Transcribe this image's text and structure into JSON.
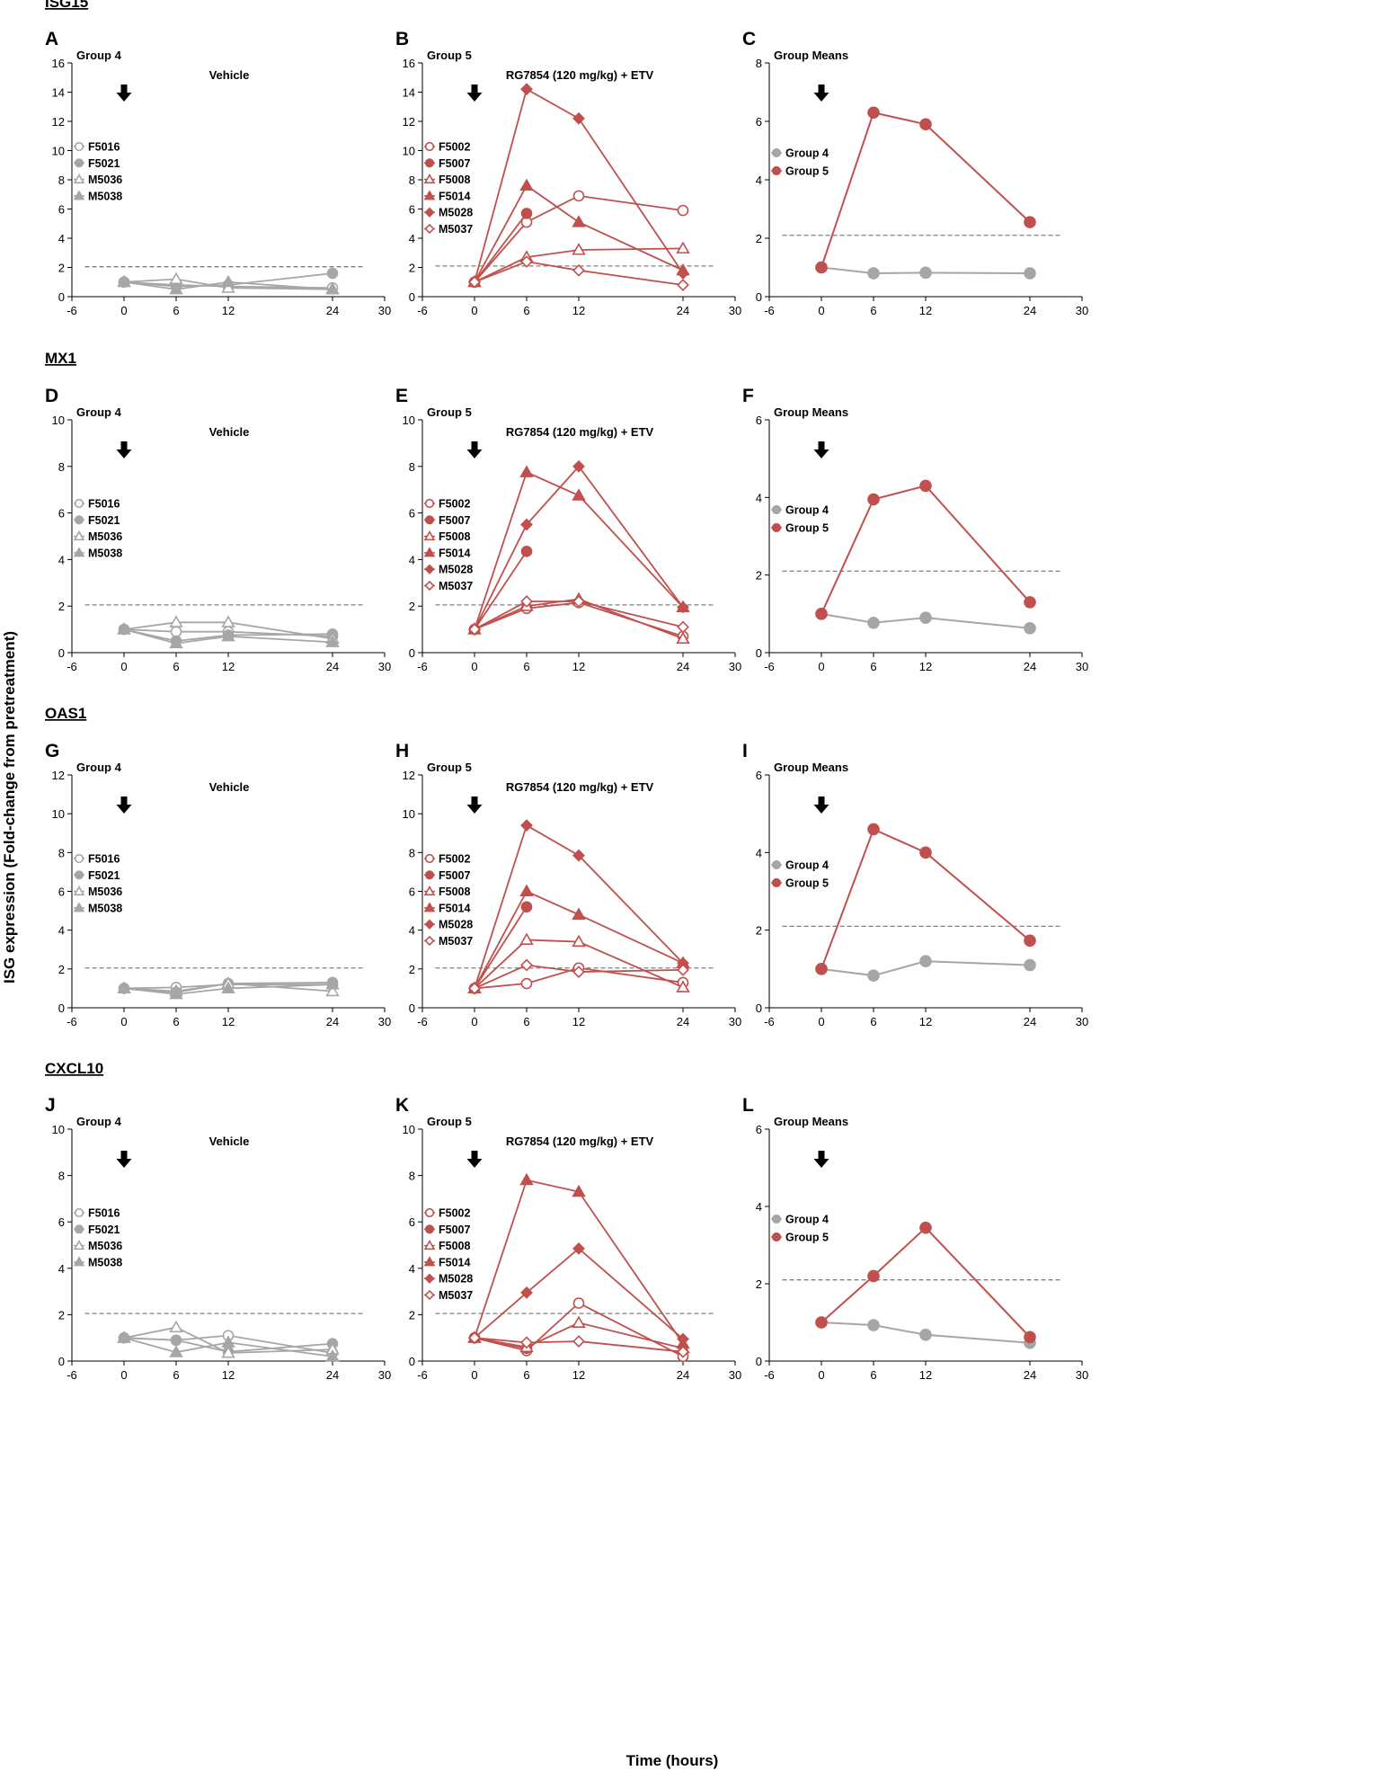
{
  "figure": {
    "ylabel": "ISG expression (Fold-change from pretreatment)",
    "xlabel": "Time (hours)"
  },
  "colors": {
    "group4": "#a6a6a6",
    "group5": "#c0504d",
    "threshold": "#808080"
  },
  "rows": [
    {
      "gene": "ISG15"
    },
    {
      "gene": "MX1"
    },
    {
      "gene": "OAS1"
    },
    {
      "gene": "CXCL10"
    }
  ],
  "chart_data": [
    {
      "panel": "A",
      "type": "line",
      "title": "Group 4",
      "subtitle": "Vehicle",
      "color": "group4",
      "ylim": [
        0,
        16
      ],
      "yticks": [
        0,
        2,
        4,
        6,
        8,
        10,
        12,
        14,
        16
      ],
      "xlim": [
        -6,
        30
      ],
      "xticks": [
        -6,
        0,
        6,
        12,
        24,
        30
      ],
      "threshold": 2.05,
      "series": [
        {
          "name": "F5016",
          "marker": "circle-open",
          "x": [
            0,
            6,
            12,
            24
          ],
          "y": [
            1.0,
            0.8,
            0.7,
            0.6
          ]
        },
        {
          "name": "F5021",
          "marker": "circle",
          "x": [
            0,
            6,
            12,
            24
          ],
          "y": [
            1.0,
            0.7,
            0.8,
            1.6
          ]
        },
        {
          "name": "M5036",
          "marker": "triangle-open",
          "x": [
            0,
            6,
            12,
            24
          ],
          "y": [
            1.0,
            1.2,
            0.6,
            0.5
          ]
        },
        {
          "name": "M5038",
          "marker": "triangle",
          "x": [
            0,
            6,
            12,
            24
          ],
          "y": [
            1.0,
            0.5,
            1.0,
            0.5
          ]
        }
      ]
    },
    {
      "panel": "B",
      "type": "line",
      "title": "Group 5",
      "subtitle": "RG7854 (120 mg/kg) + ETV",
      "color": "group5",
      "ylim": [
        0,
        16
      ],
      "yticks": [
        0,
        2,
        4,
        6,
        8,
        10,
        12,
        14,
        16
      ],
      "xlim": [
        -6,
        30
      ],
      "xticks": [
        -6,
        0,
        6,
        12,
        24,
        30
      ],
      "threshold": 2.1,
      "series": [
        {
          "name": "F5002",
          "marker": "circle-open",
          "x": [
            0,
            6,
            12,
            24
          ],
          "y": [
            1.0,
            5.1,
            6.9,
            5.9
          ]
        },
        {
          "name": "F5007",
          "marker": "circle",
          "x": [
            0,
            6
          ],
          "y": [
            1.0,
            5.7
          ]
        },
        {
          "name": "F5008",
          "marker": "triangle-open",
          "x": [
            0,
            6,
            12,
            24
          ],
          "y": [
            1.0,
            2.7,
            3.2,
            3.3
          ]
        },
        {
          "name": "F5014",
          "marker": "triangle",
          "x": [
            0,
            6,
            12,
            24
          ],
          "y": [
            1.0,
            7.6,
            5.1,
            1.8
          ]
        },
        {
          "name": "M5028",
          "marker": "diamond",
          "x": [
            0,
            6,
            12,
            24
          ],
          "y": [
            1.0,
            14.2,
            12.2,
            1.6
          ]
        },
        {
          "name": "M5037",
          "marker": "diamond-open",
          "x": [
            0,
            6,
            12,
            24
          ],
          "y": [
            1.0,
            2.4,
            1.8,
            0.8
          ]
        }
      ]
    },
    {
      "panel": "C",
      "type": "line",
      "title": "Group Means",
      "subtitle": "",
      "color": "",
      "ylim": [
        0,
        8
      ],
      "yticks": [
        0,
        2,
        4,
        6,
        8
      ],
      "xlim": [
        -6,
        30
      ],
      "xticks": [
        -6,
        0,
        6,
        12,
        24,
        30
      ],
      "threshold": 2.1,
      "series": [
        {
          "name": "Group 4",
          "marker": "circle",
          "color": "group4",
          "x": [
            0,
            6,
            12,
            24
          ],
          "y": [
            1.0,
            0.8,
            0.82,
            0.8
          ]
        },
        {
          "name": "Group 5",
          "marker": "circle",
          "color": "group5",
          "x": [
            0,
            6,
            12,
            24
          ],
          "y": [
            1.0,
            6.3,
            5.9,
            2.55
          ]
        }
      ]
    },
    {
      "panel": "D",
      "type": "line",
      "title": "Group 4",
      "subtitle": "Vehicle",
      "color": "group4",
      "ylim": [
        0,
        10
      ],
      "yticks": [
        0,
        2,
        4,
        6,
        8,
        10
      ],
      "xlim": [
        -6,
        30
      ],
      "xticks": [
        -6,
        0,
        6,
        12,
        24,
        30
      ],
      "threshold": 2.05,
      "series": [
        {
          "name": "F5016",
          "marker": "circle-open",
          "x": [
            0,
            6,
            12,
            24
          ],
          "y": [
            1.0,
            0.9,
            0.9,
            0.7
          ]
        },
        {
          "name": "F5021",
          "marker": "circle",
          "x": [
            0,
            6,
            12,
            24
          ],
          "y": [
            1.0,
            0.5,
            0.75,
            0.8
          ]
        },
        {
          "name": "M5036",
          "marker": "triangle-open",
          "x": [
            0,
            6,
            12,
            24
          ],
          "y": [
            1.0,
            1.3,
            1.3,
            0.6
          ]
        },
        {
          "name": "M5038",
          "marker": "triangle",
          "x": [
            0,
            6,
            12,
            24
          ],
          "y": [
            1.0,
            0.4,
            0.7,
            0.45
          ]
        }
      ]
    },
    {
      "panel": "E",
      "type": "line",
      "title": "Group 5",
      "subtitle": "RG7854 (120 mg/kg) + ETV",
      "color": "group5",
      "ylim": [
        0,
        10
      ],
      "yticks": [
        0,
        2,
        4,
        6,
        8,
        10
      ],
      "xlim": [
        -6,
        30
      ],
      "xticks": [
        -6,
        0,
        6,
        12,
        24,
        30
      ],
      "threshold": 2.05,
      "series": [
        {
          "name": "F5002",
          "marker": "circle-open",
          "x": [
            0,
            6,
            12,
            24
          ],
          "y": [
            1.0,
            1.9,
            2.15,
            0.7
          ]
        },
        {
          "name": "F5007",
          "marker": "circle",
          "x": [
            0,
            6
          ],
          "y": [
            1.0,
            4.35
          ]
        },
        {
          "name": "F5008",
          "marker": "triangle-open",
          "x": [
            0,
            6,
            12,
            24
          ],
          "y": [
            1.0,
            2.0,
            2.3,
            0.6
          ]
        },
        {
          "name": "F5014",
          "marker": "triangle",
          "x": [
            0,
            6,
            12,
            24
          ],
          "y": [
            1.0,
            7.75,
            6.75,
            1.95
          ]
        },
        {
          "name": "M5028",
          "marker": "diamond",
          "x": [
            0,
            6,
            12,
            24
          ],
          "y": [
            1.0,
            5.5,
            8.0,
            1.95
          ]
        },
        {
          "name": "M5037",
          "marker": "diamond-open",
          "x": [
            0,
            6,
            12,
            24
          ],
          "y": [
            1.0,
            2.2,
            2.2,
            1.1
          ]
        }
      ]
    },
    {
      "panel": "F",
      "type": "line",
      "title": "Group Means",
      "subtitle": "",
      "color": "",
      "ylim": [
        0,
        6
      ],
      "yticks": [
        0,
        2,
        4,
        6
      ],
      "xlim": [
        -6,
        30
      ],
      "xticks": [
        -6,
        0,
        6,
        12,
        24,
        30
      ],
      "threshold": 2.1,
      "series": [
        {
          "name": "Group 4",
          "marker": "circle",
          "color": "group4",
          "x": [
            0,
            6,
            12,
            24
          ],
          "y": [
            1.0,
            0.77,
            0.9,
            0.63
          ]
        },
        {
          "name": "Group 5",
          "marker": "circle",
          "color": "group5",
          "x": [
            0,
            6,
            12,
            24
          ],
          "y": [
            1.0,
            3.95,
            4.3,
            1.3
          ]
        }
      ]
    },
    {
      "panel": "G",
      "type": "line",
      "title": "Group 4",
      "subtitle": "Vehicle",
      "color": "group4",
      "ylim": [
        0,
        12
      ],
      "yticks": [
        0,
        2,
        4,
        6,
        8,
        10,
        12
      ],
      "xlim": [
        -6,
        30
      ],
      "xticks": [
        -6,
        0,
        6,
        12,
        24,
        30
      ],
      "threshold": 2.05,
      "series": [
        {
          "name": "F5016",
          "marker": "circle-open",
          "x": [
            0,
            6,
            12,
            24
          ],
          "y": [
            1.0,
            1.05,
            1.2,
            1.2
          ]
        },
        {
          "name": "F5021",
          "marker": "circle",
          "x": [
            0,
            6,
            12,
            24
          ],
          "y": [
            1.0,
            0.8,
            1.25,
            1.3
          ]
        },
        {
          "name": "M5036",
          "marker": "triangle-open",
          "x": [
            0,
            6,
            12,
            24
          ],
          "y": [
            1.0,
            0.85,
            1.25,
            0.85
          ]
        },
        {
          "name": "M5038",
          "marker": "triangle",
          "x": [
            0,
            6,
            12,
            24
          ],
          "y": [
            1.0,
            0.7,
            1.0,
            1.2
          ]
        }
      ]
    },
    {
      "panel": "H",
      "type": "line",
      "title": "Group 5",
      "subtitle": "RG7854 (120 mg/kg) + ETV",
      "color": "group5",
      "ylim": [
        0,
        12
      ],
      "yticks": [
        0,
        2,
        4,
        6,
        8,
        10,
        12
      ],
      "xlim": [
        -6,
        30
      ],
      "xticks": [
        -6,
        0,
        6,
        12,
        24,
        30
      ],
      "threshold": 2.05,
      "series": [
        {
          "name": "F5002",
          "marker": "circle-open",
          "x": [
            0,
            6,
            12,
            24
          ],
          "y": [
            1.0,
            1.25,
            2.05,
            1.3
          ]
        },
        {
          "name": "F5007",
          "marker": "circle",
          "x": [
            0,
            6
          ],
          "y": [
            1.0,
            5.2
          ]
        },
        {
          "name": "F5008",
          "marker": "triangle-open",
          "x": [
            0,
            6,
            12,
            24
          ],
          "y": [
            1.0,
            3.5,
            3.4,
            1.05
          ]
        },
        {
          "name": "F5014",
          "marker": "triangle",
          "x": [
            0,
            6,
            12,
            24
          ],
          "y": [
            1.0,
            6.0,
            4.8,
            2.3
          ]
        },
        {
          "name": "M5028",
          "marker": "diamond",
          "x": [
            0,
            6,
            12,
            24
          ],
          "y": [
            1.0,
            9.4,
            7.85,
            2.3
          ]
        },
        {
          "name": "M5037",
          "marker": "diamond-open",
          "x": [
            0,
            6,
            12,
            24
          ],
          "y": [
            1.0,
            2.2,
            1.85,
            1.95
          ]
        }
      ]
    },
    {
      "panel": "I",
      "type": "line",
      "title": "Group Means",
      "subtitle": "",
      "color": "",
      "ylim": [
        0,
        6
      ],
      "yticks": [
        0,
        2,
        4,
        6
      ],
      "xlim": [
        -6,
        30
      ],
      "xticks": [
        -6,
        0,
        6,
        12,
        24,
        30
      ],
      "threshold": 2.1,
      "series": [
        {
          "name": "Group 4",
          "marker": "circle",
          "color": "group4",
          "x": [
            0,
            6,
            12,
            24
          ],
          "y": [
            1.0,
            0.83,
            1.2,
            1.1
          ]
        },
        {
          "name": "Group 5",
          "marker": "circle",
          "color": "group5",
          "x": [
            0,
            6,
            12,
            24
          ],
          "y": [
            1.0,
            4.6,
            4.0,
            1.73
          ]
        }
      ]
    },
    {
      "panel": "J",
      "type": "line",
      "title": "Group 4",
      "subtitle": "Vehicle",
      "color": "group4",
      "ylim": [
        0,
        10
      ],
      "yticks": [
        0,
        2,
        4,
        6,
        8,
        10
      ],
      "xlim": [
        -6,
        30
      ],
      "xticks": [
        -6,
        0,
        6,
        12,
        24,
        30
      ],
      "threshold": 2.05,
      "series": [
        {
          "name": "F5016",
          "marker": "circle-open",
          "x": [
            0,
            6,
            12,
            24
          ],
          "y": [
            1.0,
            0.9,
            1.1,
            0.35
          ]
        },
        {
          "name": "F5021",
          "marker": "circle",
          "x": [
            0,
            6,
            12,
            24
          ],
          "y": [
            1.0,
            0.9,
            0.4,
            0.75
          ]
        },
        {
          "name": "M5036",
          "marker": "triangle-open",
          "x": [
            0,
            6,
            12,
            24
          ],
          "y": [
            1.0,
            1.45,
            0.35,
            0.5
          ]
        },
        {
          "name": "M5038",
          "marker": "triangle",
          "x": [
            0,
            6,
            12,
            24
          ],
          "y": [
            1.0,
            0.38,
            0.8,
            0.2
          ]
        }
      ]
    },
    {
      "panel": "K",
      "type": "line",
      "title": "Group 5",
      "subtitle": "RG7854 (120 mg/kg) + ETV",
      "color": "group5",
      "ylim": [
        0,
        10
      ],
      "yticks": [
        0,
        2,
        4,
        6,
        8,
        10
      ],
      "xlim": [
        -6,
        30
      ],
      "xticks": [
        -6,
        0,
        6,
        12,
        24,
        30
      ],
      "threshold": 2.05,
      "series": [
        {
          "name": "F5002",
          "marker": "circle-open",
          "x": [
            0,
            6,
            12,
            24
          ],
          "y": [
            1.0,
            0.45,
            2.5,
            0.2
          ]
        },
        {
          "name": "F5007",
          "marker": "circle",
          "x": [
            0,
            6
          ],
          "y": [
            1.0,
            0.55
          ]
        },
        {
          "name": "F5008",
          "marker": "triangle-open",
          "x": [
            0,
            6,
            12,
            24
          ],
          "y": [
            1.0,
            0.6,
            1.65,
            0.55
          ]
        },
        {
          "name": "F5014",
          "marker": "triangle",
          "x": [
            0,
            6,
            12,
            24
          ],
          "y": [
            1.0,
            7.8,
            7.3,
            0.75
          ]
        },
        {
          "name": "M5028",
          "marker": "diamond",
          "x": [
            0,
            6,
            12,
            24
          ],
          "y": [
            1.0,
            2.95,
            4.85,
            0.95
          ]
        },
        {
          "name": "M5037",
          "marker": "diamond-open",
          "x": [
            0,
            6,
            12,
            24
          ],
          "y": [
            1.0,
            0.8,
            0.85,
            0.4
          ]
        }
      ]
    },
    {
      "panel": "L",
      "type": "line",
      "title": "Group Means",
      "subtitle": "",
      "color": "",
      "ylim": [
        0,
        6
      ],
      "yticks": [
        0,
        2,
        4,
        6
      ],
      "xlim": [
        -6,
        30
      ],
      "xticks": [
        -6,
        0,
        6,
        12,
        24,
        30
      ],
      "threshold": 2.1,
      "series": [
        {
          "name": "Group 4",
          "marker": "circle",
          "color": "group4",
          "x": [
            0,
            6,
            12,
            24
          ],
          "y": [
            1.0,
            0.93,
            0.68,
            0.47
          ]
        },
        {
          "name": "Group 5",
          "marker": "circle",
          "color": "group5",
          "x": [
            0,
            6,
            12,
            24
          ],
          "y": [
            1.0,
            2.2,
            3.45,
            0.62
          ]
        }
      ]
    }
  ]
}
